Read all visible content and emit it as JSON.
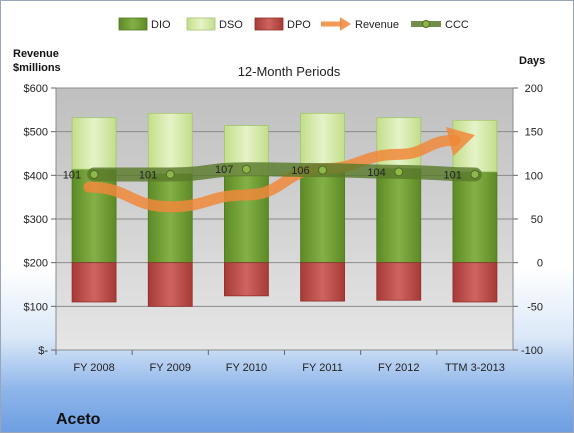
{
  "chart_data": {
    "type": "bar",
    "title": "12-Month Periods",
    "company": "Aceto",
    "categories": [
      "FY 2008",
      "FY 2009",
      "FY 2010",
      "FY 2011",
      "FY 2012",
      "TTM 3-2013"
    ],
    "left_axis": {
      "title_line1": "Revenue",
      "title_line2": "$millions",
      "range": [
        0,
        600
      ],
      "tick_values": [
        0,
        100,
        200,
        300,
        400,
        500,
        600
      ],
      "tick_labels": [
        "$-",
        "$100",
        "$200",
        "$300",
        "$400",
        "$500",
        "$600"
      ]
    },
    "right_axis": {
      "title": "Days",
      "range": [
        -100,
        200
      ],
      "tick_values": [
        -100,
        -50,
        0,
        50,
        100,
        150,
        200
      ],
      "tick_labels": [
        "-100",
        "-50",
        "0",
        "50",
        "100",
        "150",
        "200"
      ]
    },
    "series": [
      {
        "name": "DIO",
        "axis": "Days",
        "kind": "stacked-bar",
        "color": "#6e9a32",
        "values": [
          107,
          102,
          100,
          105,
          108,
          104
        ]
      },
      {
        "name": "DSO",
        "axis": "Days",
        "kind": "stacked-bar",
        "color": "#d3e8a4",
        "values": [
          59,
          69,
          57,
          66,
          58,
          59
        ]
      },
      {
        "name": "DPO",
        "axis": "Days",
        "kind": "negative-bar",
        "color": "#c0504d",
        "values": [
          -45,
          -50,
          -38,
          -44,
          -43,
          -45
        ]
      },
      {
        "name": "Revenue",
        "axis": "Revenue",
        "kind": "line-arrow",
        "color": "#f0883a",
        "values": [
          373,
          328,
          355,
          415,
          448,
          492
        ]
      },
      {
        "name": "CCC",
        "axis": "Days",
        "kind": "line-marker",
        "color": "#5a7a2c",
        "values": [
          101,
          101,
          107,
          106,
          104,
          101
        ]
      }
    ],
    "ccc_labels": [
      "101",
      "101",
      "107",
      "106",
      "104",
      "101"
    ],
    "grid": true,
    "legend_position": "top"
  }
}
